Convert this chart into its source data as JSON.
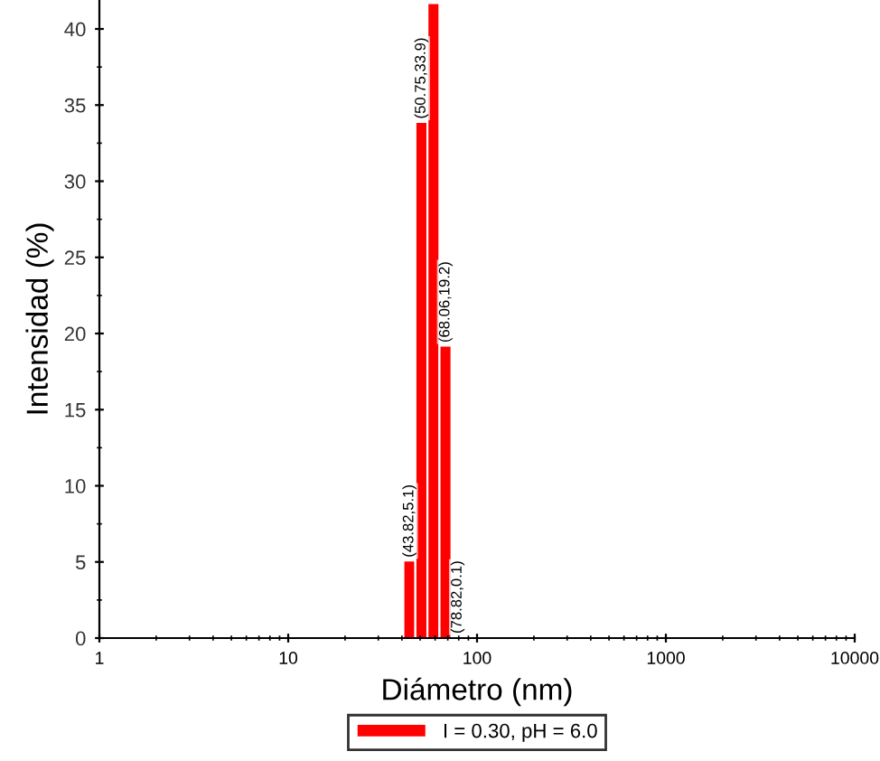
{
  "chart_data": {
    "type": "bar",
    "xlabel": "Diámetro (nm)",
    "ylabel": "Intensidad (%)",
    "x": [
      43.82,
      50.75,
      58.77,
      68.06,
      78.82
    ],
    "series": [
      {
        "name": "I = 0.30, pH = 6.0",
        "color": "#ff0000",
        "values": [
          5.1,
          33.9,
          41.7,
          19.2,
          0.1
        ],
        "value_labels": [
          "(43.82,5.1)",
          "(50.75,33.9)",
          null,
          "(68.06,19.2)",
          "(78.82,0.1)"
        ]
      }
    ],
    "log": "x",
    "xlim": [
      1,
      10000
    ],
    "xticks": [
      1,
      10,
      100,
      1000,
      10000
    ],
    "ylim": [
      0,
      41.9
    ],
    "yticks": [
      0,
      5,
      10,
      15,
      20,
      25,
      30,
      35,
      40
    ],
    "grid": false,
    "legend": "bottom"
  }
}
